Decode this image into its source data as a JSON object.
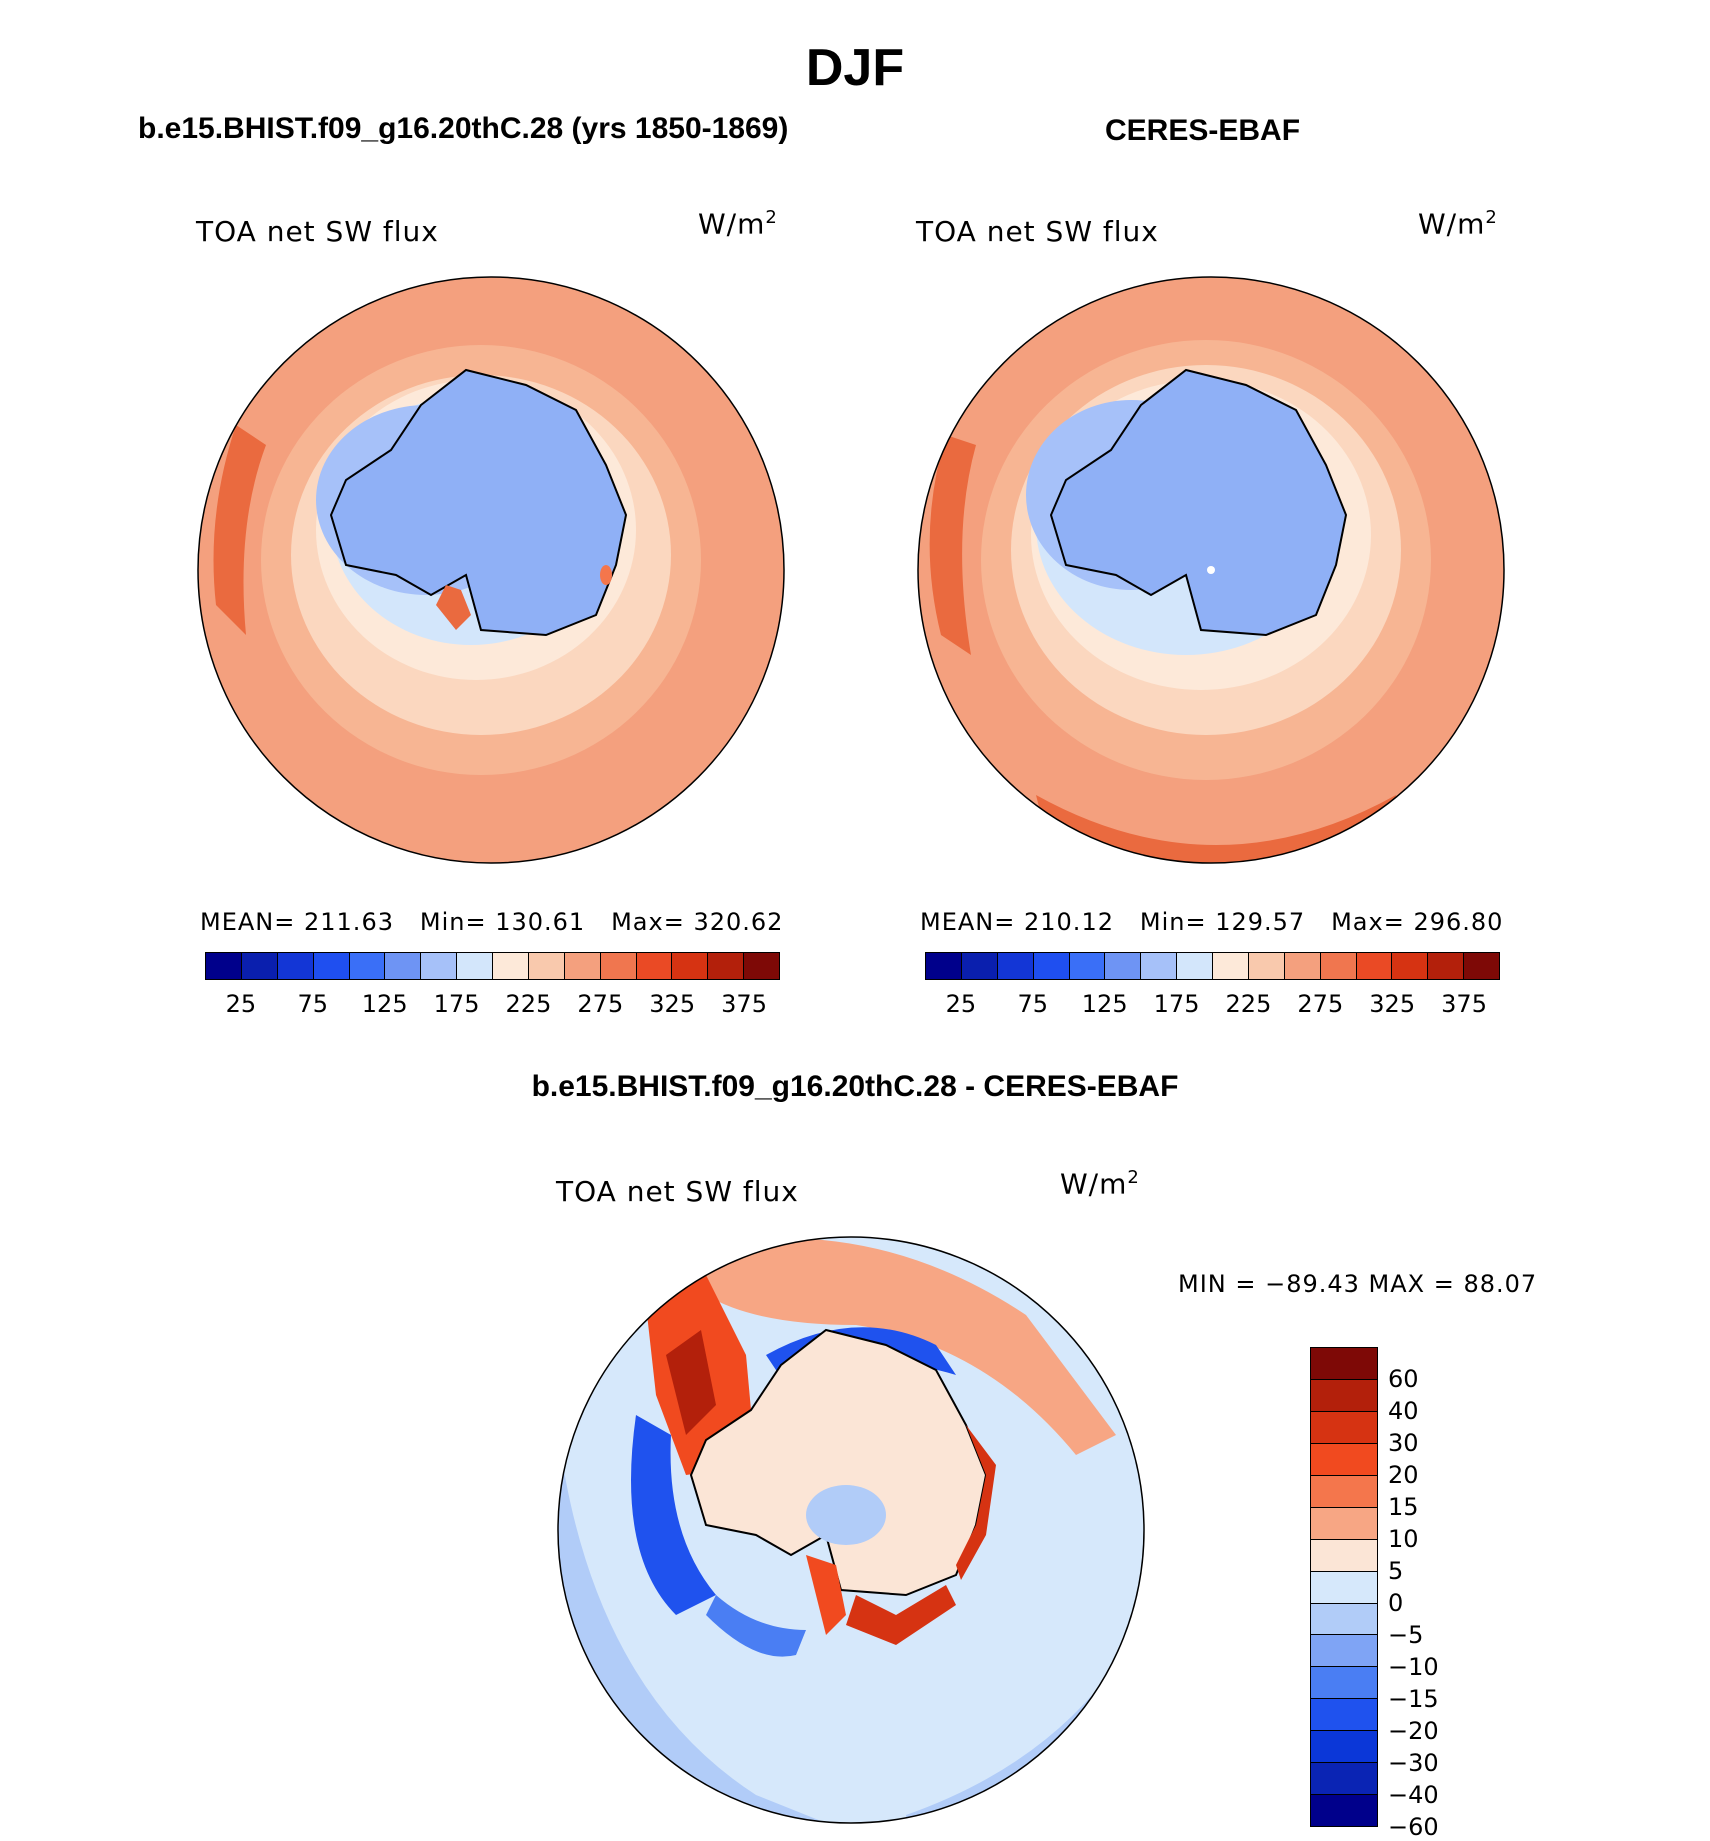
{
  "title": "DJF",
  "panels": {
    "model": {
      "subtitle": "b.e15.BHIST.f09_g16.20thC.28 (yrs 1850-1869)",
      "variable": "TOA net SW flux",
      "units": "W/m",
      "units_sup": "2",
      "mean_label": "MEAN=",
      "mean": "211.63",
      "min_label": "Min=",
      "min": "130.61",
      "max_label": "Max=",
      "max": "320.62"
    },
    "obs": {
      "subtitle": "CERES-EBAF",
      "variable": "TOA net SW flux",
      "units": "W/m",
      "units_sup": "2",
      "mean_label": "MEAN=",
      "mean": "210.12",
      "min_label": "Min=",
      "min": "129.57",
      "max_label": "Max=",
      "max": "296.80"
    },
    "diff": {
      "subtitle": "b.e15.BHIST.f09_g16.20thC.28 - CERES-EBAF",
      "variable": "TOA net SW flux",
      "units": "W/m",
      "units_sup": "2",
      "minmax_text": "MIN = −89.43 MAX =   88.07"
    }
  },
  "colorbar_abs": {
    "colors": [
      "#00008b",
      "#0a1fae",
      "#1336d6",
      "#1f4ff0",
      "#3a6ff7",
      "#6e94f4",
      "#a6c1f9",
      "#d3e6fb",
      "#fde9d9",
      "#f9c9ad",
      "#f4a07e",
      "#f0764f",
      "#ea4a25",
      "#d63312",
      "#b3200b",
      "#7e0906"
    ],
    "tick_labels": [
      "25",
      "75",
      "125",
      "175",
      "225",
      "275",
      "325",
      "375"
    ]
  },
  "colorbar_diff": {
    "colors": [
      "#7e0906",
      "#b3200b",
      "#d63312",
      "#f14a1f",
      "#f4764c",
      "#f7a684",
      "#fbe5d6",
      "#d6e8fb",
      "#b1ccf8",
      "#7fa4f5",
      "#4a7ef3",
      "#1f52ee",
      "#0b37d8",
      "#0a24b4",
      "#00008b"
    ],
    "tick_labels": [
      "60",
      "40",
      "30",
      "20",
      "15",
      "10",
      "5",
      "0",
      "−5",
      "−10",
      "−15",
      "−20",
      "−30",
      "−40",
      "−60"
    ]
  }
}
